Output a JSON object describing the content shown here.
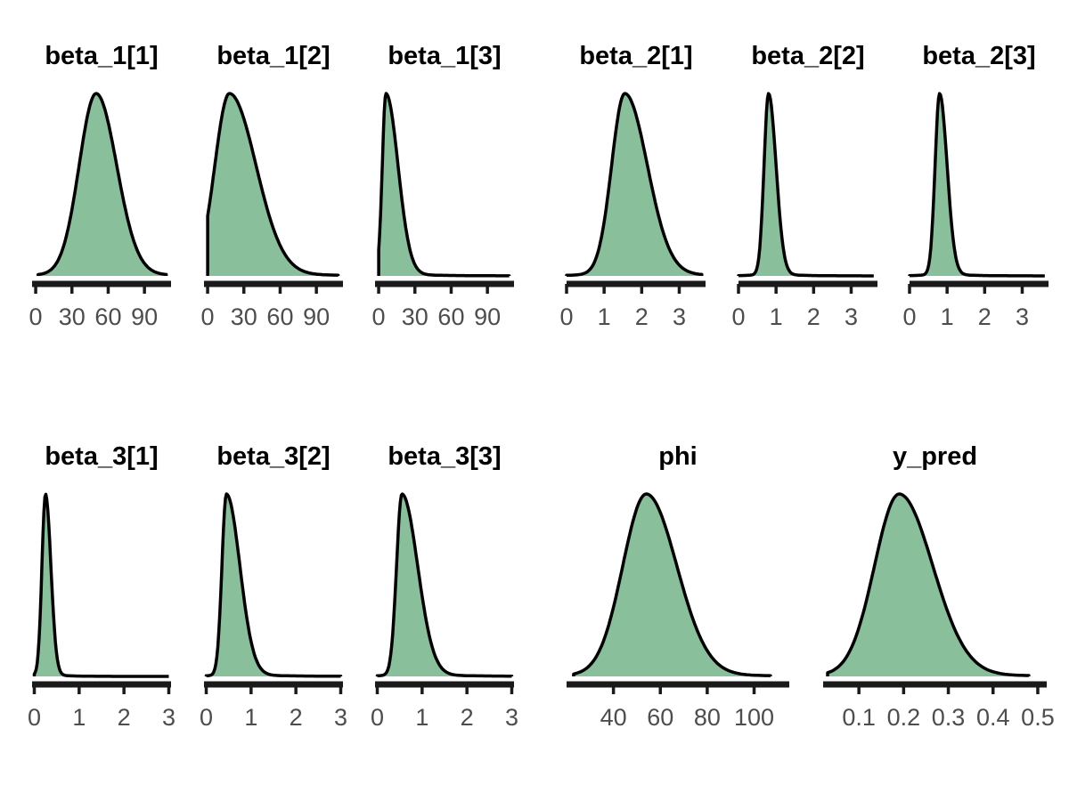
{
  "chart_data": [
    {
      "type": "area",
      "title": "beta_1[1]",
      "xlim": [
        -3,
        112
      ],
      "xticks": [
        0,
        30,
        60,
        90
      ],
      "xticklabels": [
        "0",
        "30",
        "60",
        "90"
      ],
      "peak": 50,
      "sd_left": 14,
      "sd_right": 17,
      "min": 2,
      "max": 108
    },
    {
      "type": "area",
      "title": "beta_1[2]",
      "xlim": [
        -3,
        112
      ],
      "xticks": [
        0,
        30,
        60,
        90
      ],
      "xticklabels": [
        "0",
        "30",
        "60",
        "90"
      ],
      "peak": 18,
      "sd_left": 12,
      "sd_right": 22,
      "min": 0,
      "max": 108
    },
    {
      "type": "area",
      "title": "beta_1[3]",
      "xlim": [
        -3,
        112
      ],
      "xticks": [
        0,
        30,
        60,
        90
      ],
      "xticklabels": [
        "0",
        "30",
        "60",
        "90"
      ],
      "peak": 6,
      "sd_left": 3,
      "sd_right": 10,
      "min": 0,
      "max": 108
    },
    {
      "type": "area",
      "title": "beta_2[1]",
      "xlim": [
        0,
        3.7
      ],
      "xticks": [
        0,
        1,
        2,
        3
      ],
      "xticklabels": [
        "0",
        "1",
        "2",
        "3"
      ],
      "peak": 1.55,
      "sd_left": 0.35,
      "sd_right": 0.6,
      "min": 0.0,
      "max": 3.6
    },
    {
      "type": "area",
      "title": "beta_2[2]",
      "xlim": [
        0,
        3.7
      ],
      "xticks": [
        0,
        1,
        2,
        3
      ],
      "xticklabels": [
        "0",
        "1",
        "2",
        "3"
      ],
      "peak": 0.8,
      "sd_left": 0.12,
      "sd_right": 0.2,
      "min": 0.0,
      "max": 3.6
    },
    {
      "type": "area",
      "title": "beta_2[3]",
      "xlim": [
        0,
        3.7
      ],
      "xticks": [
        0,
        1,
        2,
        3
      ],
      "xticklabels": [
        "0",
        "1",
        "2",
        "3"
      ],
      "peak": 0.8,
      "sd_left": 0.12,
      "sd_right": 0.2,
      "min": 0.0,
      "max": 3.6
    },
    {
      "type": "area",
      "title": "beta_3[1]",
      "xlim": [
        -0.05,
        3.05
      ],
      "xticks": [
        0,
        1,
        2,
        3
      ],
      "xticklabels": [
        "0",
        "1",
        "2",
        "3"
      ],
      "peak": 0.25,
      "sd_left": 0.08,
      "sd_right": 0.12,
      "min": 0.0,
      "max": 3.0
    },
    {
      "type": "area",
      "title": "beta_3[2]",
      "xlim": [
        -0.05,
        3.05
      ],
      "xticks": [
        0,
        1,
        2,
        3
      ],
      "xticklabels": [
        "0",
        "1",
        "2",
        "3"
      ],
      "peak": 0.45,
      "sd_left": 0.1,
      "sd_right": 0.3,
      "min": 0.0,
      "max": 3.0
    },
    {
      "type": "area",
      "title": "beta_3[3]",
      "xlim": [
        -0.05,
        3.05
      ],
      "xticks": [
        0,
        1,
        2,
        3
      ],
      "xticklabels": [
        "0",
        "1",
        "2",
        "3"
      ],
      "peak": 0.55,
      "sd_left": 0.12,
      "sd_right": 0.35,
      "min": 0.0,
      "max": 3.0
    },
    {
      "type": "area",
      "title": "phi",
      "xlim": [
        20,
        115
      ],
      "xticks": [
        40,
        60,
        80,
        100
      ],
      "xticklabels": [
        "40",
        "60",
        "80",
        "100"
      ],
      "peak": 54,
      "sd_left": 10,
      "sd_right": 13,
      "min": 23,
      "max": 107
    },
    {
      "type": "area",
      "title": "y_pred",
      "xlim": [
        0.02,
        0.52
      ],
      "xticks": [
        0.1,
        0.2,
        0.3,
        0.4,
        0.5
      ],
      "xticklabels": [
        "0.1",
        "0.2",
        "0.3",
        "0.4",
        "0.5"
      ],
      "peak": 0.19,
      "sd_left": 0.055,
      "sd_right": 0.075,
      "min": 0.03,
      "max": 0.48
    }
  ]
}
